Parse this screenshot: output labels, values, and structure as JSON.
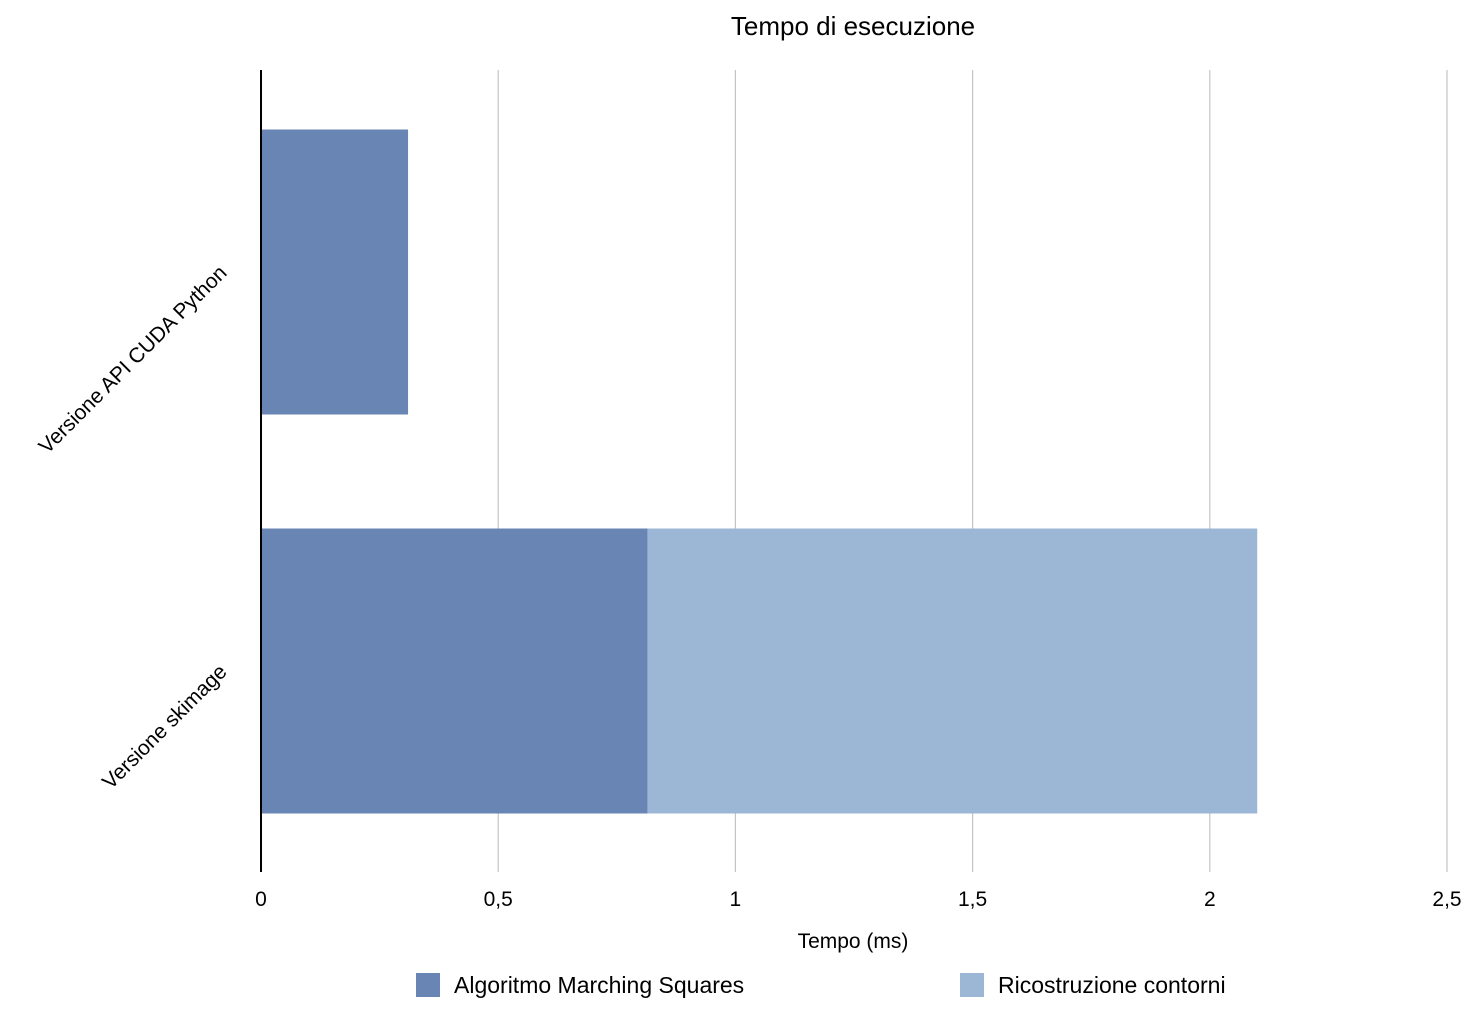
{
  "chart_data": {
    "type": "bar",
    "orientation": "horizontal",
    "stacked": true,
    "title": "Tempo di esecuzione",
    "xlabel": "Tempo (ms)",
    "ylabel": "",
    "categories": [
      "Versione API CUDA Python",
      "Versione skimage"
    ],
    "series": [
      {
        "name": "Algoritmo Marching Squares",
        "color": "#6885b3",
        "values": [
          0.31,
          0.815
        ]
      },
      {
        "name": "Ricostruzione contorni",
        "color": "#9cb7d6",
        "values": [
          0,
          1.285
        ]
      }
    ],
    "xlim": [
      0,
      2.5
    ],
    "xticks": [
      0,
      0.5,
      1,
      1.5,
      2,
      2.5
    ],
    "xtick_labels": [
      "0",
      "0,5",
      "1",
      "1,5",
      "2",
      "2,5"
    ],
    "grid": true,
    "legend_position": "bottom"
  }
}
